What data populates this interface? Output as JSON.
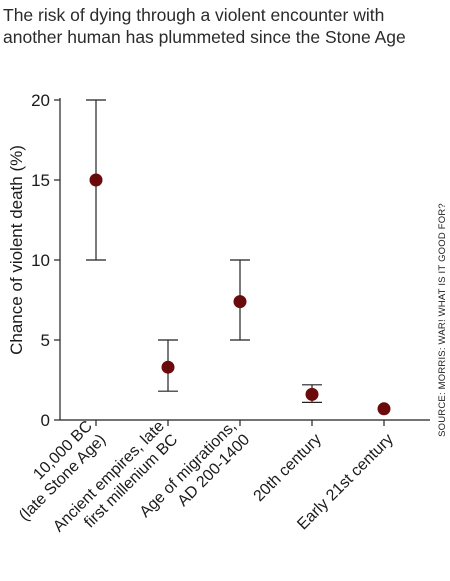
{
  "title": "The risk of dying through a violent encounter with another human has plummeted since the Stone Age",
  "source": "SOURCE: MORRIS: WAR! WHAT IS IT GOOD FOR?",
  "colors": {
    "point": "#6b0a0a",
    "axis": "#222222",
    "errorbar": "#222222"
  },
  "chart_data": {
    "type": "scatter",
    "title": "The risk of dying through a violent encounter with another human has plummeted since the Stone Age",
    "ylabel": "Chance of violent death (%)",
    "xlabel": "",
    "ylim": [
      0,
      20
    ],
    "yticks": [
      "0",
      "5",
      "10",
      "15",
      "20"
    ],
    "categories": [
      [
        "10,000 BC",
        "(late Stone Age)"
      ],
      [
        "Ancient empires, late",
        "first millenium BC"
      ],
      [
        "Age of migrations,",
        "AD 200-1400"
      ],
      [
        "20th century"
      ],
      [
        "Early 21st century"
      ]
    ],
    "values": [
      15,
      3.3,
      7.4,
      1.6,
      0.7
    ],
    "error_low": [
      10,
      1.8,
      5,
      1.1,
      null
    ],
    "error_high": [
      20,
      5,
      10,
      2.2,
      null
    ],
    "grid": false,
    "legend": "none"
  }
}
